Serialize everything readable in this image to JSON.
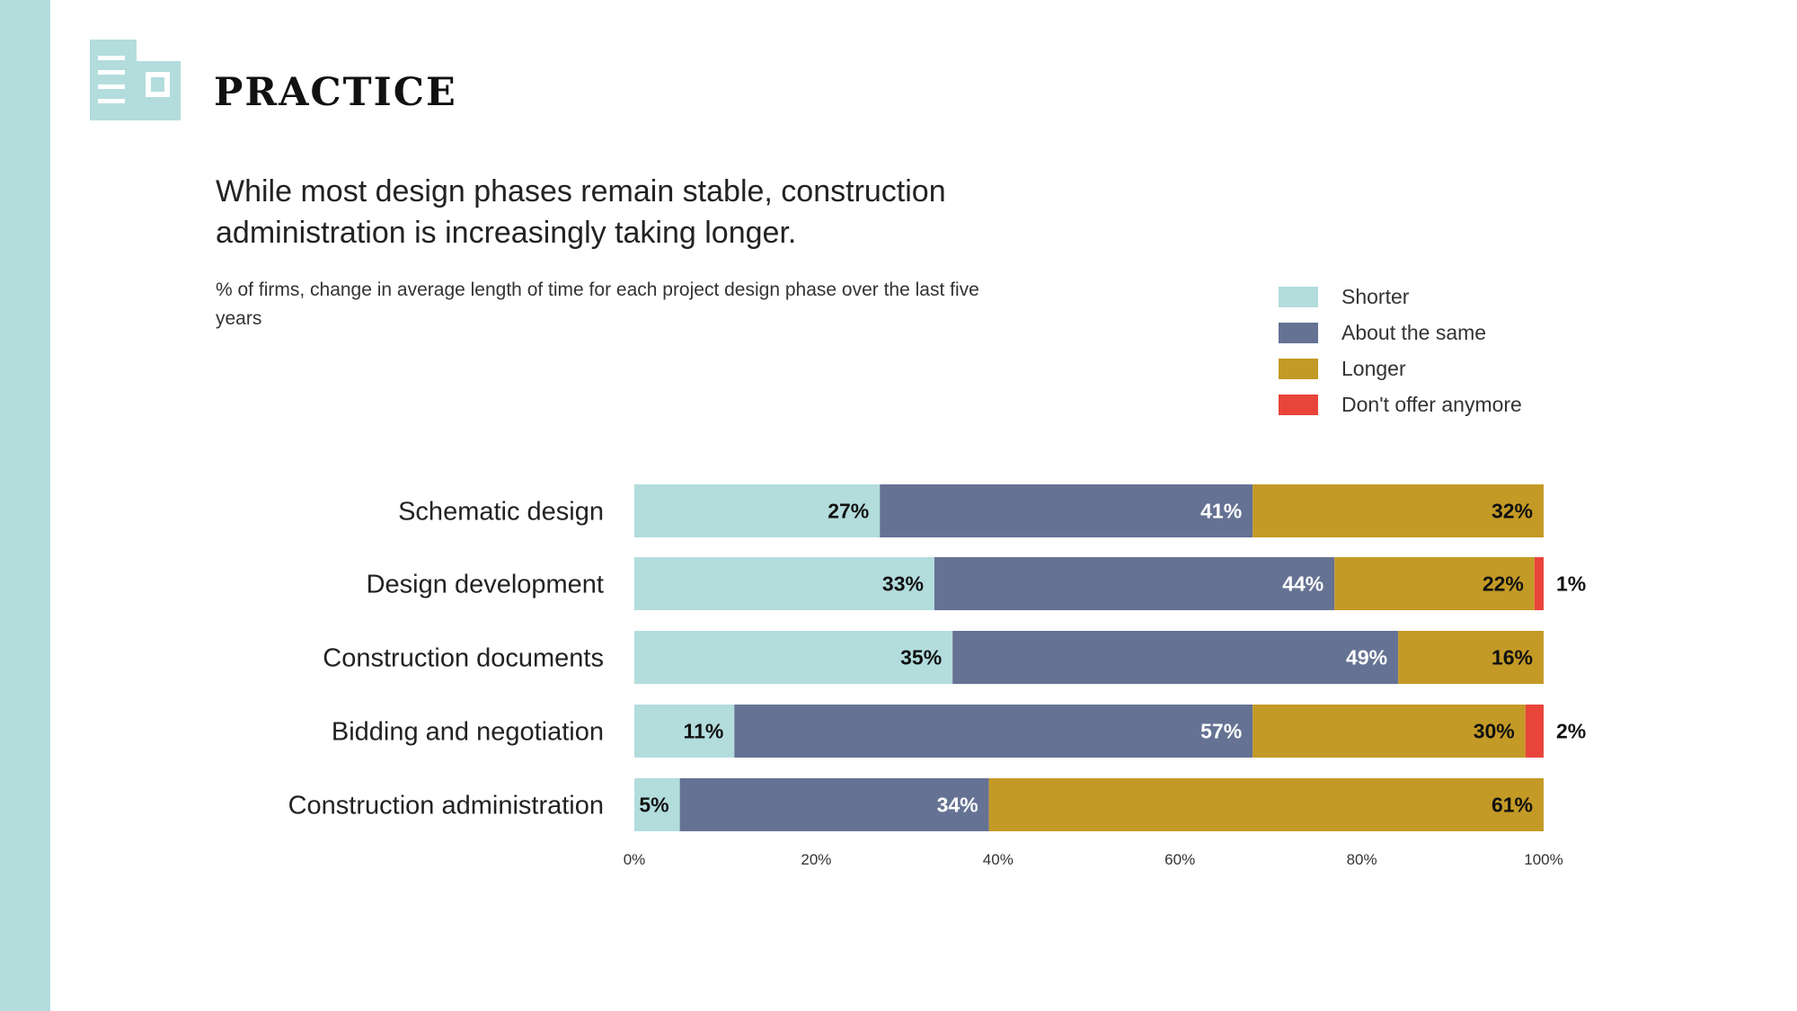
{
  "section": {
    "title": "PRACTICE",
    "icon": "building-icon"
  },
  "headline": "While most design phases remain stable, construction administration is increasingly taking longer.",
  "subtitle": "% of firms, change in average length of time for each project design phase over the last five years",
  "colors": {
    "sidebar": "#b3dcdd",
    "Shorter": "#b3dcdd",
    "About the same": "#657293",
    "Longer": "#c49a26",
    "Don't offer anymore": "#e8443a"
  },
  "legend": [
    {
      "label": "Shorter",
      "color": "#b3dcdd"
    },
    {
      "label": "About the same",
      "color": "#657293"
    },
    {
      "label": "Longer",
      "color": "#c49a26"
    },
    {
      "label": "Don't offer anymore",
      "color": "#e8443a"
    }
  ],
  "chart_data": {
    "type": "bar",
    "orientation": "horizontal",
    "stacked": true,
    "categories": [
      "Schematic design",
      "Design development",
      "Construction documents",
      "Bidding and negotiation",
      "Construction administration"
    ],
    "series": [
      {
        "name": "Shorter",
        "values": [
          27,
          33,
          35,
          11,
          5
        ],
        "labels": [
          "27%",
          "33%",
          "35%",
          "11%",
          "5%"
        ]
      },
      {
        "name": "About the same",
        "values": [
          41,
          44,
          49,
          57,
          34
        ],
        "labels": [
          "41%",
          "44%",
          "49%",
          "57%",
          "34%"
        ]
      },
      {
        "name": "Longer",
        "values": [
          32,
          22,
          16,
          30,
          61
        ],
        "labels": [
          "32%",
          "22%",
          "16%",
          "30%",
          "61%"
        ]
      },
      {
        "name": "Don't offer anymore",
        "values": [
          0,
          1,
          0,
          2,
          0
        ],
        "labels": [
          "",
          "1%",
          "",
          "2%",
          ""
        ]
      }
    ],
    "xlim": [
      0,
      100
    ],
    "xticks": [
      "0%",
      "20%",
      "40%",
      "60%",
      "80%",
      "100%"
    ],
    "grid": false,
    "legend_position": "top-right"
  }
}
